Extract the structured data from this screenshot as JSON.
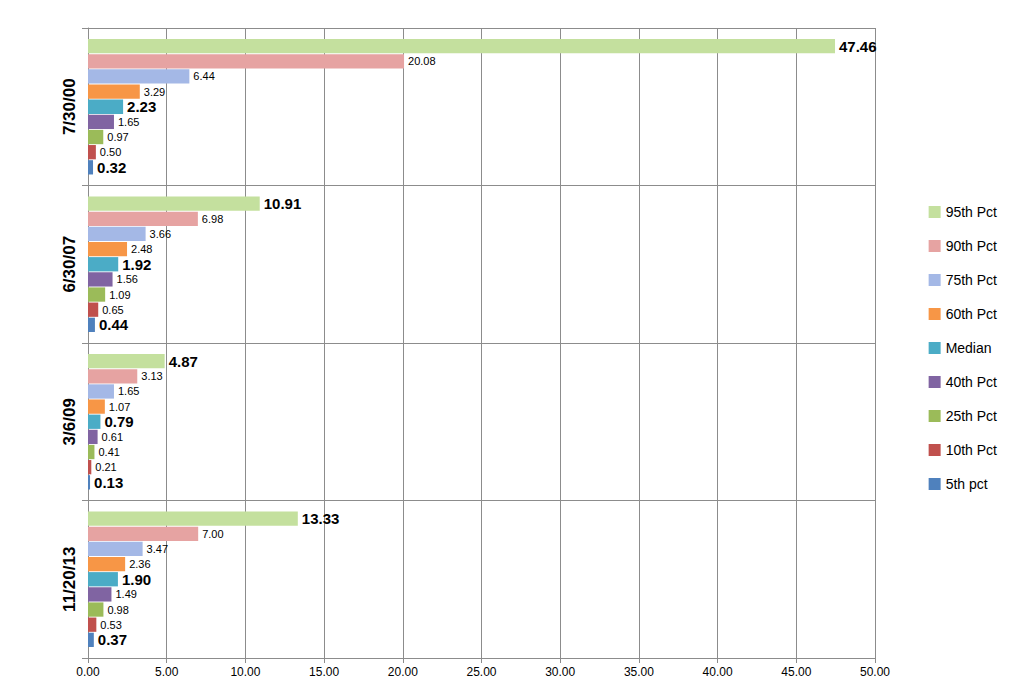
{
  "chart_data": {
    "type": "bar",
    "orientation": "horizontal",
    "categories": [
      "7/30/00",
      "6/30/07",
      "3/6/09",
      "11/20/13"
    ],
    "series": [
      {
        "name": "95th Pct",
        "color": "#c4e09e",
        "values": [
          47.46,
          10.91,
          4.87,
          13.33
        ],
        "value_labels": [
          "47.46",
          "10.91",
          "4.87",
          "13.33"
        ]
      },
      {
        "name": "90th Pct",
        "color": "#e6a3a2",
        "values": [
          20.08,
          6.98,
          3.13,
          7.0
        ],
        "value_labels": [
          "20.08",
          "6.98",
          "3.13",
          "7.00"
        ]
      },
      {
        "name": "75th Pct",
        "color": "#a4b8e6",
        "values": [
          6.44,
          3.66,
          1.65,
          3.47
        ],
        "value_labels": [
          "6.44",
          "3.66",
          "1.65",
          "3.47"
        ]
      },
      {
        "name": "60th Pct",
        "color": "#f79646",
        "values": [
          3.29,
          2.48,
          1.07,
          2.36
        ],
        "value_labels": [
          "3.29",
          "2.48",
          "1.07",
          "2.36"
        ]
      },
      {
        "name": "Median",
        "color": "#4bacc6",
        "values": [
          2.23,
          1.92,
          0.79,
          1.9
        ],
        "value_labels": [
          "2.23",
          "1.92",
          "0.79",
          "1.90"
        ]
      },
      {
        "name": "40th Pct",
        "color": "#8064a2",
        "values": [
          1.65,
          1.56,
          0.61,
          1.49
        ],
        "value_labels": [
          "1.65",
          "1.56",
          "0.61",
          "1.49"
        ]
      },
      {
        "name": "25th Pct",
        "color": "#9bbb59",
        "values": [
          0.97,
          1.09,
          0.41,
          0.98
        ],
        "value_labels": [
          "0.97",
          "1.09",
          "0.41",
          "0.98"
        ]
      },
      {
        "name": "10th Pct",
        "color": "#c0504d",
        "values": [
          0.5,
          0.65,
          0.21,
          0.53
        ],
        "value_labels": [
          "0.50",
          "0.65",
          "0.21",
          "0.53"
        ]
      },
      {
        "name": "5th pct",
        "color": "#4f81bd",
        "values": [
          0.32,
          0.44,
          0.13,
          0.37
        ],
        "value_labels": [
          "0.32",
          "0.44",
          "0.13",
          "0.37"
        ]
      }
    ],
    "xlim": [
      0,
      50
    ],
    "xticks": [
      {
        "value": 0,
        "label": "0.00"
      },
      {
        "value": 5,
        "label": "5.00"
      },
      {
        "value": 10,
        "label": "10.00"
      },
      {
        "value": 15,
        "label": "15.00"
      },
      {
        "value": 20,
        "label": "20.00"
      },
      {
        "value": 25,
        "label": "25.00"
      },
      {
        "value": 30,
        "label": "30.00"
      },
      {
        "value": 35,
        "label": "35.00"
      },
      {
        "value": 40,
        "label": "40.00"
      },
      {
        "value": 45,
        "label": "45.00"
      },
      {
        "value": 50,
        "label": "50.00"
      }
    ],
    "grid": true,
    "legend": "right",
    "data_labels": true
  }
}
